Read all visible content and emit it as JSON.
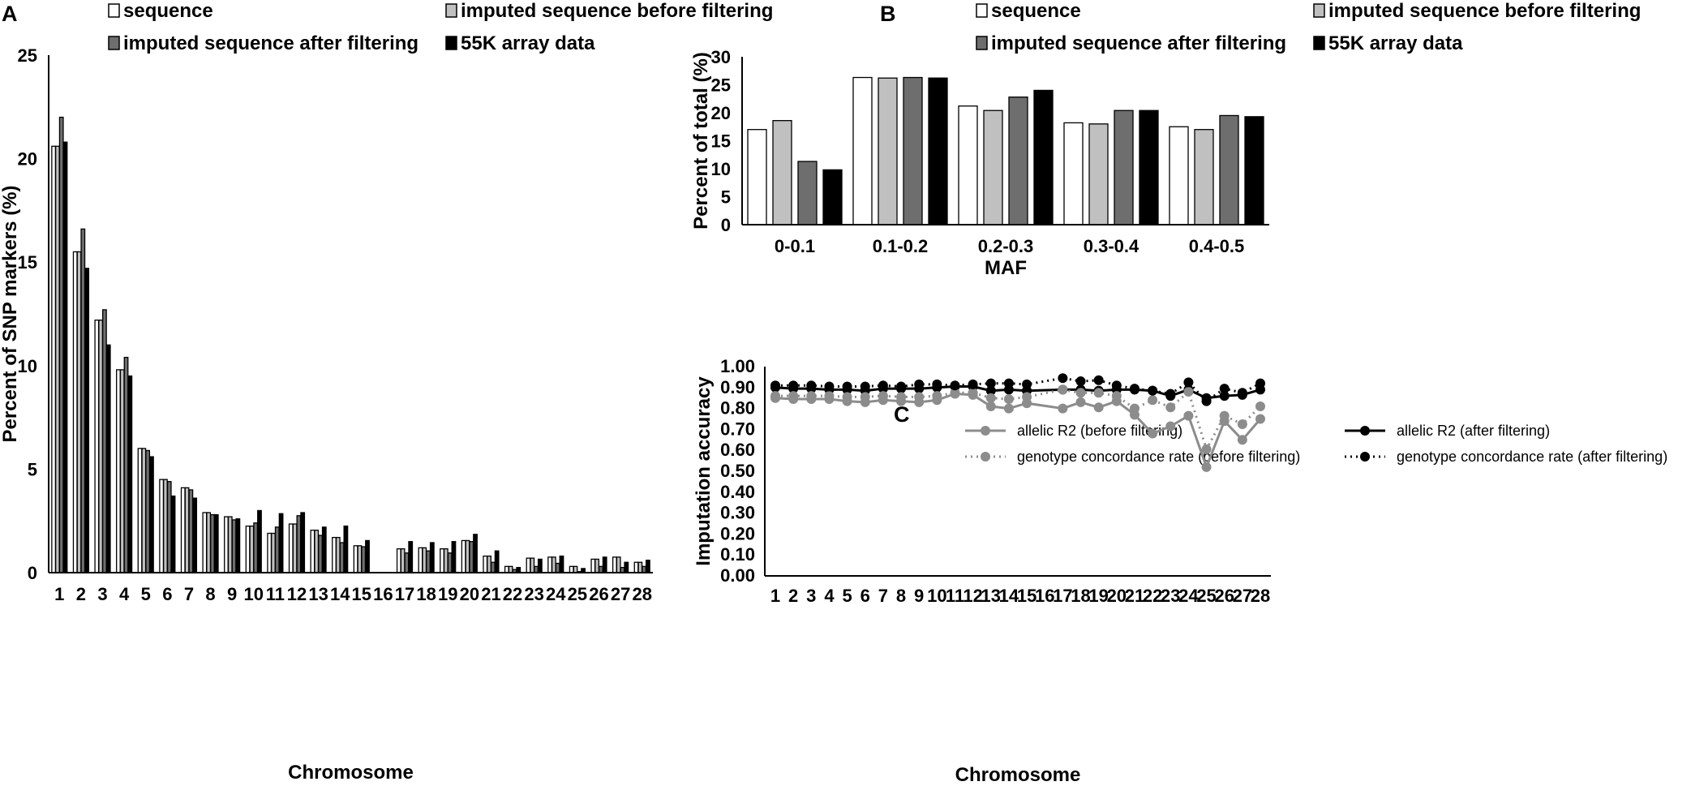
{
  "chart_data": [
    {
      "panel": "A",
      "type": "bar",
      "title": "",
      "xlabel": "Chromosome",
      "ylabel": "Percent of SNP markers (%)",
      "ylim": [
        0,
        25
      ],
      "yticks": [
        "0",
        "5",
        "10",
        "15",
        "20",
        "25"
      ],
      "categories": [
        "1",
        "2",
        "3",
        "4",
        "5",
        "6",
        "7",
        "8",
        "9",
        "10",
        "11",
        "12",
        "13",
        "14",
        "15",
        "16",
        "17",
        "18",
        "19",
        "20",
        "21",
        "22",
        "23",
        "24",
        "25",
        "26",
        "27",
        "28"
      ],
      "series": [
        {
          "name": "sequence",
          "color": "#ffffff",
          "values": [
            20.6,
            15.5,
            12.2,
            9.8,
            6.0,
            4.5,
            4.1,
            2.9,
            2.7,
            2.25,
            1.9,
            2.35,
            2.05,
            1.7,
            1.3,
            0,
            1.15,
            1.2,
            1.15,
            1.55,
            0.8,
            0.3,
            0.7,
            0.75,
            0.3,
            0.65,
            0.75,
            0.5
          ]
        },
        {
          "name": "imputed sequence before filtering",
          "color": "#c0c0c0",
          "values": [
            20.6,
            15.5,
            12.2,
            9.8,
            6.0,
            4.5,
            4.1,
            2.9,
            2.7,
            2.25,
            1.9,
            2.35,
            2.05,
            1.7,
            1.3,
            0,
            1.15,
            1.2,
            1.15,
            1.55,
            0.8,
            0.3,
            0.7,
            0.75,
            0.3,
            0.65,
            0.75,
            0.5
          ]
        },
        {
          "name": "imputed sequence after filtering",
          "color": "#6e6e6e",
          "values": [
            22.0,
            16.6,
            12.7,
            10.4,
            5.9,
            4.4,
            4.0,
            2.8,
            2.55,
            2.4,
            2.2,
            2.75,
            1.8,
            1.45,
            1.25,
            0,
            0.95,
            1.05,
            0.95,
            1.5,
            0.5,
            0.15,
            0.3,
            0.45,
            0.05,
            0.3,
            0.25,
            0.3
          ]
        },
        {
          "name": "55K array data",
          "color": "#000000",
          "values": [
            20.8,
            14.7,
            11.0,
            9.5,
            5.6,
            3.7,
            3.6,
            2.8,
            2.6,
            3.0,
            2.85,
            2.9,
            2.2,
            2.25,
            1.55,
            0,
            1.5,
            1.45,
            1.5,
            1.85,
            1.05,
            0.25,
            0.65,
            0.8,
            0.2,
            0.75,
            0.5,
            0.6
          ]
        }
      ]
    },
    {
      "panel": "B",
      "type": "bar",
      "title": "",
      "xlabel": "MAF",
      "ylabel": "Percent of total (%)",
      "ylim": [
        0,
        30
      ],
      "yticks": [
        "0",
        "5",
        "10",
        "15",
        "20",
        "25",
        "30"
      ],
      "categories": [
        "0-0.1",
        "0.1-0.2",
        "0.2-0.3",
        "0.3-0.4",
        "0.4-0.5"
      ],
      "series": [
        {
          "name": "sequence",
          "color": "#ffffff",
          "values": [
            17.0,
            26.3,
            21.2,
            18.2,
            17.5
          ]
        },
        {
          "name": "imputed sequence before filtering",
          "color": "#c0c0c0",
          "values": [
            18.6,
            26.2,
            20.4,
            18.0,
            17.0
          ]
        },
        {
          "name": "imputed sequence after filtering",
          "color": "#6e6e6e",
          "values": [
            11.3,
            26.3,
            22.8,
            20.4,
            19.5
          ]
        },
        {
          "name": "55K array data",
          "color": "#000000",
          "values": [
            9.8,
            26.2,
            24.0,
            20.4,
            19.3
          ]
        }
      ]
    },
    {
      "panel": "C",
      "type": "line",
      "title": "",
      "xlabel": "Chromosome",
      "ylabel": "Imputation accuracy",
      "ylim": [
        0,
        1
      ],
      "yticks": [
        "0.00",
        "0.10",
        "0.20",
        "0.30",
        "0.40",
        "0.50",
        "0.60",
        "0.70",
        "0.80",
        "0.90",
        "1.00"
      ],
      "x": [
        "1",
        "2",
        "3",
        "4",
        "5",
        "6",
        "7",
        "8",
        "9",
        "10",
        "11",
        "12",
        "13",
        "14",
        "15",
        "16",
        "17",
        "18",
        "19",
        "20",
        "21",
        "22",
        "23",
        "24",
        "25",
        "26",
        "27",
        "28"
      ],
      "series": [
        {
          "name": "allelic R2 (before filtering)",
          "color": "#8c8c8c",
          "style": "solid",
          "values": [
            0.85,
            0.845,
            0.845,
            0.845,
            0.835,
            0.83,
            0.84,
            0.835,
            0.83,
            0.84,
            0.87,
            0.865,
            0.81,
            0.8,
            0.825,
            null,
            0.8,
            0.83,
            0.805,
            0.835,
            0.77,
            0.68,
            0.715,
            0.765,
            0.52,
            0.74,
            0.65,
            0.75
          ]
        },
        {
          "name": "allelic R2 (after filtering)",
          "color": "#000000",
          "style": "solid",
          "values": [
            0.9,
            0.895,
            0.895,
            0.89,
            0.89,
            0.885,
            0.895,
            0.895,
            0.895,
            0.9,
            0.905,
            0.905,
            0.885,
            0.89,
            0.885,
            null,
            0.89,
            0.89,
            0.885,
            0.89,
            0.89,
            0.885,
            0.86,
            0.89,
            0.85,
            0.86,
            0.865,
            0.89
          ]
        },
        {
          "name": "genotype concordance rate (before filtering)",
          "color": "#8c8c8c",
          "style": "dotted",
          "values": [
            0.86,
            0.86,
            0.86,
            0.86,
            0.855,
            0.855,
            0.86,
            0.855,
            0.855,
            0.86,
            0.875,
            0.875,
            0.85,
            0.845,
            0.855,
            null,
            0.89,
            0.875,
            0.875,
            0.86,
            0.8,
            0.84,
            0.805,
            0.88,
            0.605,
            0.765,
            0.725,
            0.81
          ]
        },
        {
          "name": "genotype concordance rate (after filtering)",
          "color": "#000000",
          "style": "dotted",
          "values": [
            0.91,
            0.91,
            0.91,
            0.905,
            0.905,
            0.905,
            0.91,
            0.905,
            0.915,
            0.915,
            0.91,
            0.915,
            0.92,
            0.92,
            0.915,
            null,
            0.945,
            0.93,
            0.935,
            0.91,
            0.895,
            0.885,
            0.87,
            0.925,
            0.835,
            0.895,
            0.875,
            0.92
          ]
        }
      ]
    }
  ],
  "panels": {
    "a": {
      "letter": "A"
    },
    "b": {
      "letter": "B"
    },
    "c": {
      "letter": "C"
    }
  }
}
